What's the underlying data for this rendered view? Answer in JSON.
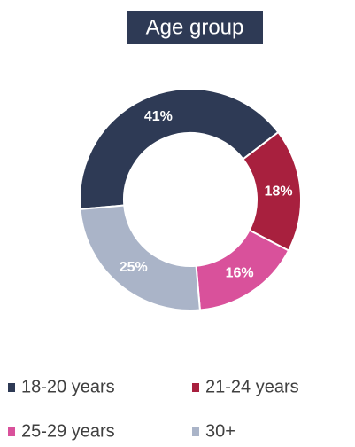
{
  "chart_data": {
    "type": "donut",
    "title": "Age group",
    "categories": [
      "18-20 years",
      "21-24 years",
      "25-29 years",
      "30+"
    ],
    "values": [
      41,
      18,
      16,
      25
    ],
    "value_labels": [
      "41%",
      "18%",
      "16%",
      "25%"
    ],
    "colors": [
      "#2e3a55",
      "#a8203e",
      "#d9519b",
      "#aab4c8"
    ]
  }
}
